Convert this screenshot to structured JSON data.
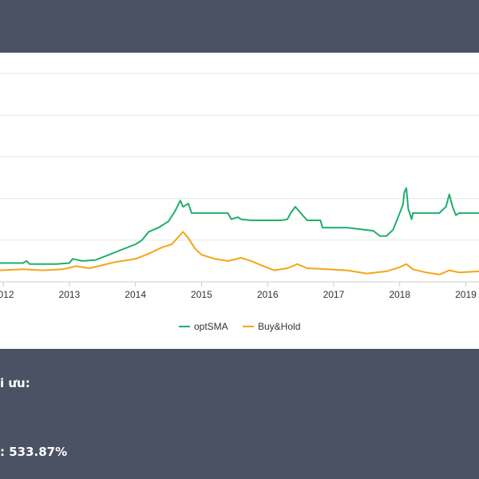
{
  "chart_data": {
    "type": "line",
    "title": "",
    "xlabel": "",
    "ylabel": "",
    "x_ticks": [
      "2012",
      "2013",
      "2014",
      "2015",
      "2016",
      "2017",
      "2018",
      "2019"
    ],
    "xlim": [
      2011.95,
      2019.2
    ],
    "ylim": [
      0,
      10
    ],
    "grid": true,
    "legend": "bottom-center",
    "series": [
      {
        "name": "optSMA",
        "color": "#1fae6e",
        "points": [
          [
            2011.95,
            0.9
          ],
          [
            2012.3,
            0.9
          ],
          [
            2012.35,
            1.0
          ],
          [
            2012.4,
            0.85
          ],
          [
            2012.8,
            0.85
          ],
          [
            2013.0,
            0.9
          ],
          [
            2013.05,
            1.1
          ],
          [
            2013.2,
            1.0
          ],
          [
            2013.4,
            1.05
          ],
          [
            2013.6,
            1.3
          ],
          [
            2013.8,
            1.55
          ],
          [
            2014.0,
            1.8
          ],
          [
            2014.1,
            2.0
          ],
          [
            2014.2,
            2.4
          ],
          [
            2014.35,
            2.6
          ],
          [
            2014.5,
            2.9
          ],
          [
            2014.6,
            3.4
          ],
          [
            2014.68,
            3.9
          ],
          [
            2014.72,
            3.6
          ],
          [
            2014.8,
            3.75
          ],
          [
            2014.85,
            3.3
          ],
          [
            2015.2,
            3.3
          ],
          [
            2015.4,
            3.3
          ],
          [
            2015.45,
            3.0
          ],
          [
            2015.55,
            3.1
          ],
          [
            2015.6,
            3.0
          ],
          [
            2015.75,
            2.95
          ],
          [
            2016.0,
            2.95
          ],
          [
            2016.2,
            2.95
          ],
          [
            2016.3,
            3.0
          ],
          [
            2016.35,
            3.3
          ],
          [
            2016.42,
            3.6
          ],
          [
            2016.5,
            3.3
          ],
          [
            2016.6,
            2.95
          ],
          [
            2016.8,
            2.95
          ],
          [
            2016.83,
            2.6
          ],
          [
            2017.2,
            2.6
          ],
          [
            2017.6,
            2.45
          ],
          [
            2017.7,
            2.2
          ],
          [
            2017.8,
            2.2
          ],
          [
            2017.9,
            2.5
          ],
          [
            2018.0,
            3.3
          ],
          [
            2018.05,
            3.7
          ],
          [
            2018.07,
            4.3
          ],
          [
            2018.1,
            4.5
          ],
          [
            2018.13,
            3.5
          ],
          [
            2018.18,
            3.0
          ],
          [
            2018.2,
            3.3
          ],
          [
            2018.6,
            3.3
          ],
          [
            2018.7,
            3.6
          ],
          [
            2018.75,
            4.2
          ],
          [
            2018.8,
            3.6
          ],
          [
            2018.85,
            3.2
          ],
          [
            2018.9,
            3.3
          ],
          [
            2019.2,
            3.3
          ]
        ]
      },
      {
        "name": "Buy&Hold",
        "color": "#f5a515",
        "points": [
          [
            2011.95,
            0.55
          ],
          [
            2012.3,
            0.6
          ],
          [
            2012.6,
            0.55
          ],
          [
            2012.9,
            0.6
          ],
          [
            2013.1,
            0.75
          ],
          [
            2013.3,
            0.65
          ],
          [
            2013.5,
            0.8
          ],
          [
            2013.7,
            0.95
          ],
          [
            2014.0,
            1.1
          ],
          [
            2014.2,
            1.35
          ],
          [
            2014.4,
            1.65
          ],
          [
            2014.55,
            1.8
          ],
          [
            2014.65,
            2.15
          ],
          [
            2014.72,
            2.4
          ],
          [
            2014.8,
            2.1
          ],
          [
            2014.9,
            1.6
          ],
          [
            2015.0,
            1.3
          ],
          [
            2015.2,
            1.1
          ],
          [
            2015.4,
            1.0
          ],
          [
            2015.6,
            1.15
          ],
          [
            2015.75,
            1.0
          ],
          [
            2015.9,
            0.8
          ],
          [
            2016.1,
            0.55
          ],
          [
            2016.3,
            0.65
          ],
          [
            2016.45,
            0.85
          ],
          [
            2016.6,
            0.65
          ],
          [
            2016.9,
            0.6
          ],
          [
            2017.2,
            0.55
          ],
          [
            2017.5,
            0.4
          ],
          [
            2017.8,
            0.5
          ],
          [
            2018.0,
            0.7
          ],
          [
            2018.1,
            0.85
          ],
          [
            2018.2,
            0.6
          ],
          [
            2018.4,
            0.45
          ],
          [
            2018.6,
            0.35
          ],
          [
            2018.75,
            0.55
          ],
          [
            2018.9,
            0.45
          ],
          [
            2019.2,
            0.5
          ]
        ]
      }
    ]
  },
  "summary": {
    "line1": "i ưu:",
    "line2": ": 533.87%"
  }
}
